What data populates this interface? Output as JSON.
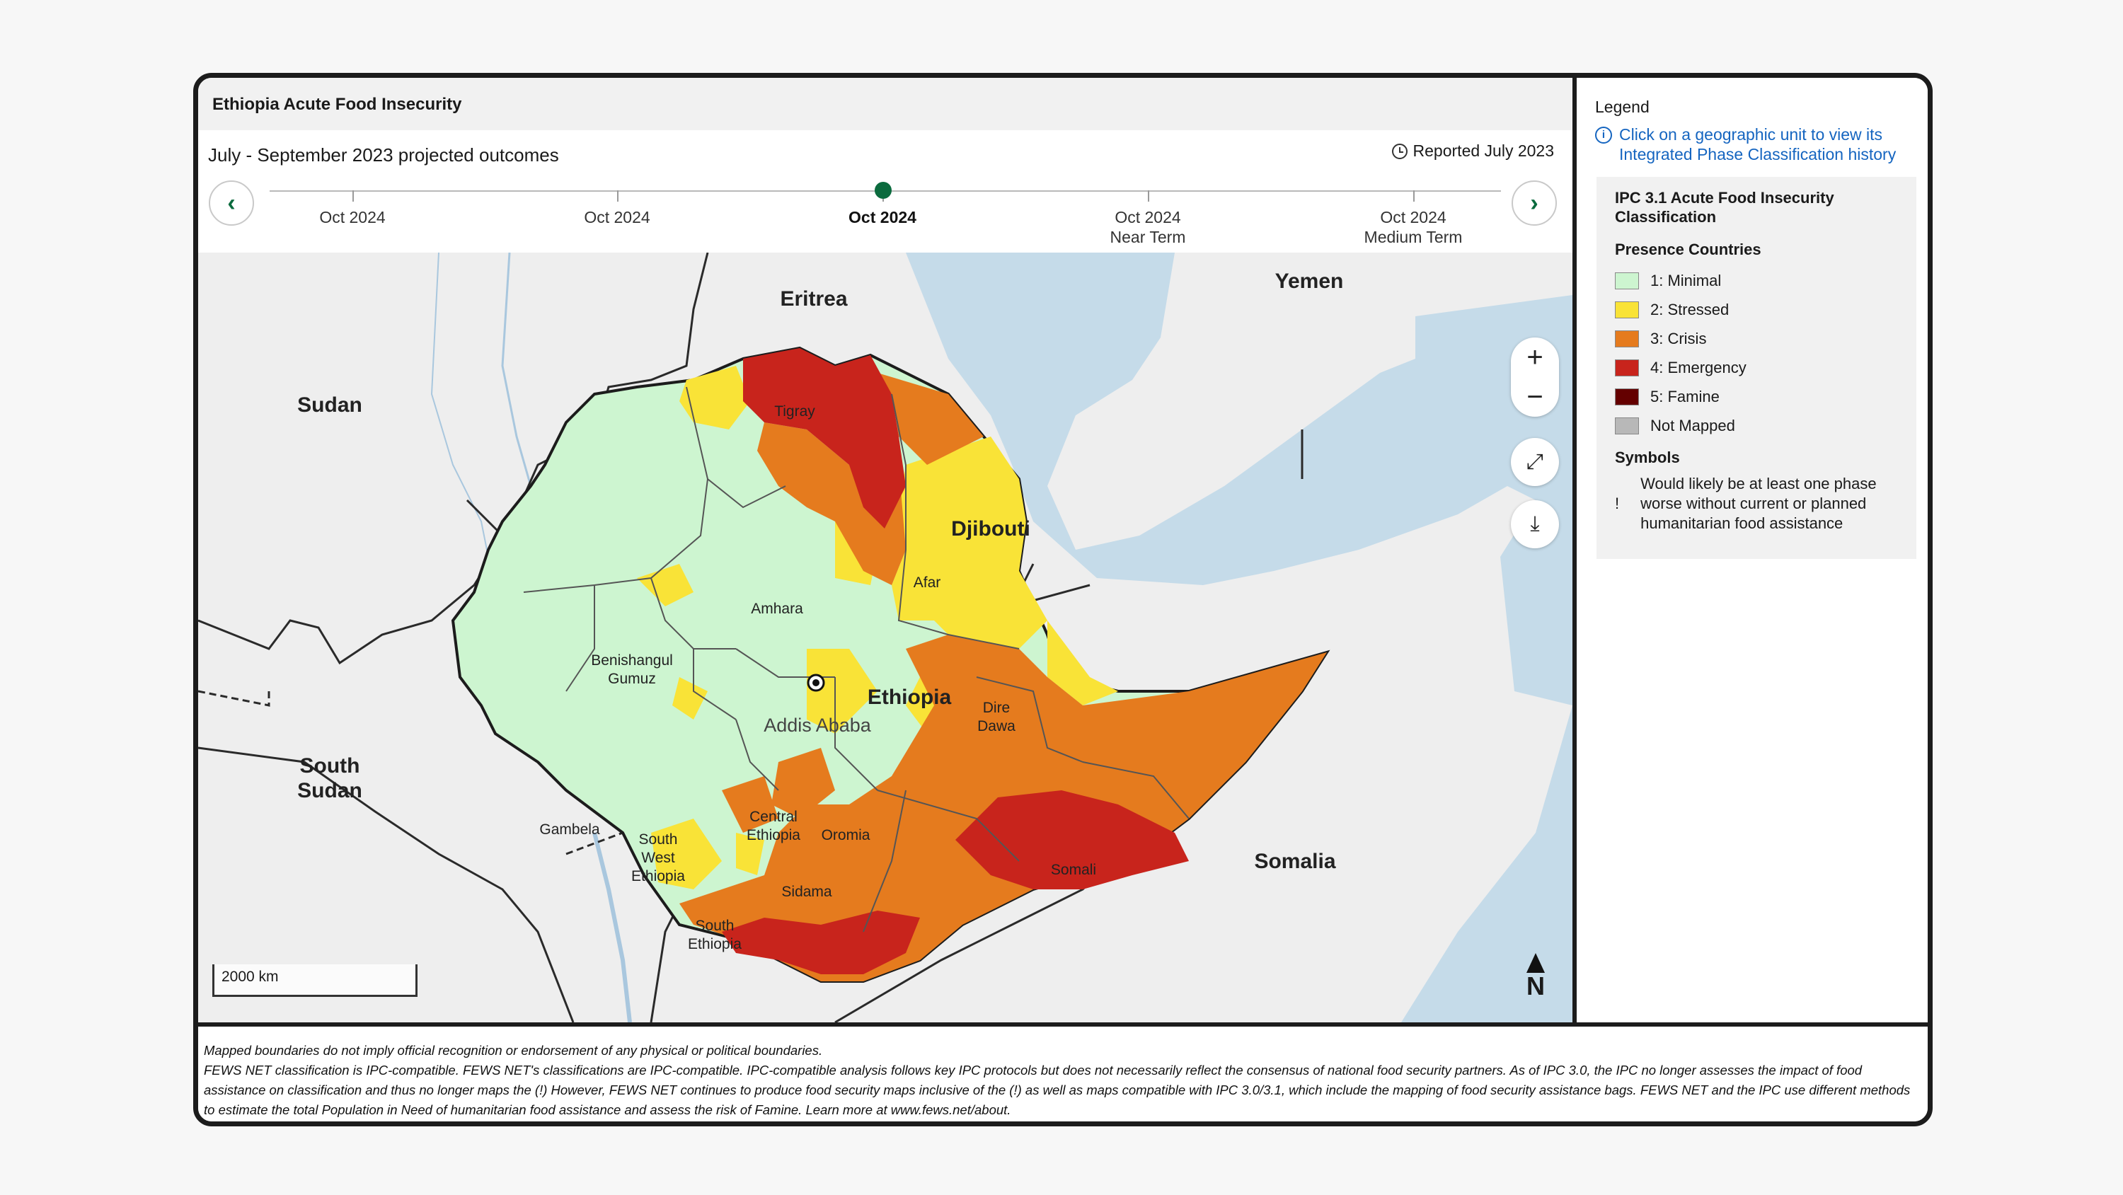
{
  "header": {
    "title": "Ethiopia Acute Food Insecurity"
  },
  "timeline": {
    "subtitle": "July - September 2023 projected outcomes",
    "reported": "Reported July 2023",
    "icon": "clock-icon",
    "steps": [
      {
        "label": "Oct 2024",
        "sublabel": ""
      },
      {
        "label": "Oct 2024",
        "sublabel": ""
      },
      {
        "label": "Oct 2024",
        "sublabel": ""
      },
      {
        "label": "Oct 2024",
        "sublabel": "Near Term"
      },
      {
        "label": "Oct 2024",
        "sublabel": "Medium Term"
      }
    ],
    "active_index": 2
  },
  "map": {
    "countries": [
      "Eritrea",
      "Yemen",
      "Sudan",
      "Djibouti",
      "South Sudan",
      "Somalia",
      "Ethiopia"
    ],
    "regions": [
      "Tigray",
      "Afar",
      "Amhara",
      "Benishangul Gumuz",
      "Dire Dawa",
      "Addis Ababa",
      "Gambela",
      "South West Ethiopia",
      "Central Ethiopia",
      "Oromia",
      "Sidama",
      "South Ethiopia",
      "Somali"
    ],
    "capital": "Addis Ababa",
    "scale": "2000 km",
    "north": "N",
    "controls": {
      "zoom_in": "+",
      "zoom_out": "−"
    }
  },
  "legend": {
    "title": "Legend",
    "info": "Click on a geographic unit to view its Integrated Phase Classification history",
    "classification_title": "IPC 3.1 Acute Food Insecurity Classification",
    "presence_title": "Presence Countries",
    "items": [
      {
        "label": "1: Minimal",
        "color": "#cdf5d0"
      },
      {
        "label": "2: Stressed",
        "color": "#f9e337"
      },
      {
        "label": "3: Crisis",
        "color": "#e57b1e"
      },
      {
        "label": "4: Emergency",
        "color": "#c8241c"
      },
      {
        "label": "5: Famine",
        "color": "#640000"
      },
      {
        "label": "Not Mapped",
        "color": "#b8b8b8"
      }
    ],
    "symbols_title": "Symbols",
    "symbol_mark": "!",
    "symbol_text": "Would likely be at least one phase worse without current or planned humanitarian food assistance"
  },
  "footer": {
    "line1": "Mapped boundaries do not imply official recognition or endorsement of any physical or political boundaries.",
    "line2": "FEWS NET classification is IPC-compatible. FEWS NET's classifications are IPC-compatible. IPC-compatible analysis follows key IPC protocols but does not necessarily reflect the consensus of national food security partners. As of IPC 3.0, the IPC no longer assesses the impact of food assistance on classification and thus no longer maps the (!) However, FEWS NET continues to produce food security maps inclusive of the (!) as well as maps compatible with IPC 3.0/3.1, which include the mapping of food security assistance bags. FEWS NET and the IPC use different methods to estimate the total Population in Need of humanitarian food assistance and assess the risk of Famine. Learn more at www.fews.net/about."
  }
}
